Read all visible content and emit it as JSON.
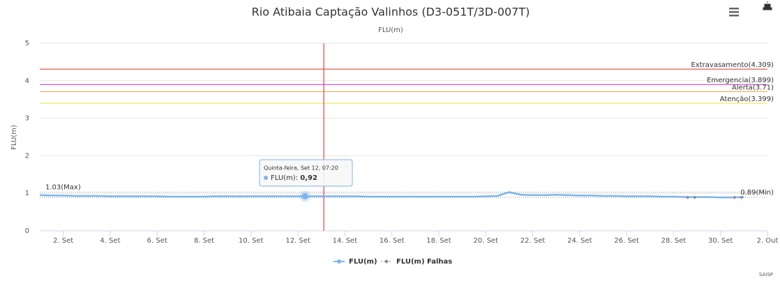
{
  "chart_data": {
    "type": "line",
    "title": "Rio Atibaia Captação Valinhos (D3-051T/3D-007T)",
    "subtitle": "FLU(m)",
    "y_label": "FLU(m)",
    "xlim": [
      1,
      32
    ],
    "xticks": [
      {
        "value": 2,
        "label": "2. Set"
      },
      {
        "value": 4,
        "label": "4. Set"
      },
      {
        "value": 6,
        "label": "6. Set"
      },
      {
        "value": 8,
        "label": "8. Set"
      },
      {
        "value": 10,
        "label": "10. Set"
      },
      {
        "value": 12,
        "label": "12. Set"
      },
      {
        "value": 14,
        "label": "14. Set"
      },
      {
        "value": 16,
        "label": "16. Set"
      },
      {
        "value": 18,
        "label": "18. Set"
      },
      {
        "value": 20,
        "label": "20. Set"
      },
      {
        "value": 22,
        "label": "22. Set"
      },
      {
        "value": 24,
        "label": "24. Set"
      },
      {
        "value": 26,
        "label": "26. Set"
      },
      {
        "value": 28,
        "label": "28. Set"
      },
      {
        "value": 30,
        "label": "30. Set"
      },
      {
        "value": 32,
        "label": "2. Out"
      }
    ],
    "ylim": [
      0,
      5
    ],
    "yticks": [
      0,
      1,
      2,
      3,
      4,
      5
    ],
    "grid": true,
    "series": [
      {
        "name": "FLU(m)",
        "color": "#7cb5ec",
        "x": [
          1,
          1.5,
          2,
          2.5,
          3,
          3.5,
          4,
          4.5,
          5,
          5.5,
          6,
          6.5,
          7,
          7.5,
          8,
          8.5,
          9,
          9.5,
          10,
          10.5,
          11,
          11.5,
          12,
          12.5,
          13,
          13.5,
          14,
          14.5,
          15,
          15.5,
          16,
          16.5,
          17,
          17.5,
          18,
          18.5,
          19,
          19.5,
          20,
          20.5,
          21,
          21.5,
          22,
          22.5,
          23,
          23.5,
          24,
          24.5,
          25,
          25.5,
          26,
          26.5,
          27,
          27.5,
          28,
          28.5,
          29,
          29.5,
          30,
          30.5,
          31
        ],
        "values": [
          0.95,
          0.94,
          0.94,
          0.93,
          0.93,
          0.93,
          0.92,
          0.92,
          0.92,
          0.92,
          0.92,
          0.91,
          0.91,
          0.91,
          0.91,
          0.92,
          0.92,
          0.92,
          0.92,
          0.92,
          0.92,
          0.92,
          0.92,
          0.92,
          0.92,
          0.92,
          0.92,
          0.92,
          0.91,
          0.91,
          0.91,
          0.91,
          0.91,
          0.91,
          0.91,
          0.91,
          0.91,
          0.91,
          0.92,
          0.93,
          1.03,
          0.96,
          0.95,
          0.95,
          0.96,
          0.95,
          0.94,
          0.94,
          0.93,
          0.93,
          0.92,
          0.92,
          0.92,
          0.91,
          0.91,
          0.9,
          0.9,
          0.9,
          0.89,
          0.89,
          0.9
        ]
      },
      {
        "name": "FLU(m) Falhas",
        "color": "#8c8c8c",
        "x": [
          28.6,
          28.9,
          30.6,
          30.9
        ],
        "values": [
          0.89,
          0.89,
          0.89,
          0.89
        ]
      }
    ],
    "plot_lines": [
      {
        "label": "Extravasamento(4.309)",
        "value": 4.309,
        "color": "#e03030"
      },
      {
        "label": "Emergencia(3.899)",
        "value": 3.899,
        "color": "#c030c0"
      },
      {
        "label": "Alerta(3.71)",
        "value": 3.71,
        "color": "#f0a030"
      },
      {
        "label": "Atenção(3.399)",
        "value": 3.399,
        "color": "#f0e040"
      }
    ],
    "max_line": {
      "label": "1.03(Max)",
      "value": 1.03
    },
    "min_line": {
      "label": "0.89(Min)",
      "value": 0.89
    },
    "crosshair": {
      "value": 13.1,
      "color": "#d02020"
    },
    "tooltip": {
      "header": "Quinta-feira, Set 12, 07:20",
      "label": "FLU(m):",
      "x": 12.3,
      "value": 0.92,
      "value_label": "0,92"
    },
    "credit": "SAISP"
  }
}
